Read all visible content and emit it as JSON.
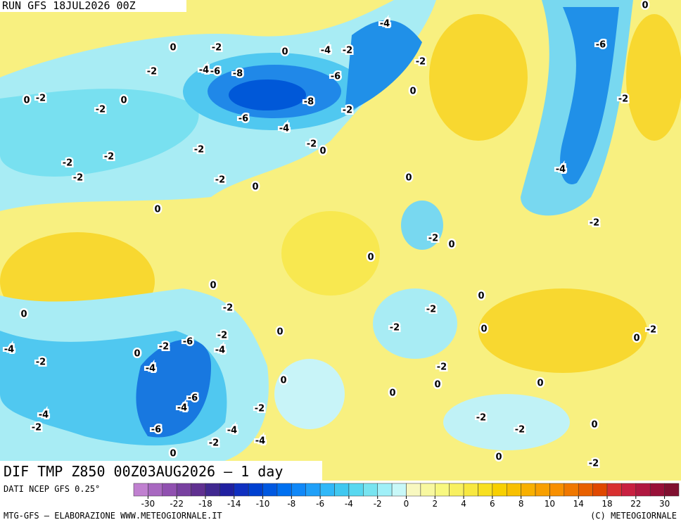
{
  "header": "RUN GFS 18JUL2026 00Z",
  "title": "DIF TMP Z850 00Z03AUG2026 – 1 day",
  "source": "DATI NCEP GFS 0.25°",
  "footer_left": "MTG-GFS – ELABORAZIONE WWW.METEOGIORNALE.IT",
  "footer_right": "(C) METEOGIORNALE",
  "colorbar": {
    "ticks": [
      -30,
      -22,
      -18,
      -14,
      -10,
      -8,
      -6,
      -4,
      -2,
      0,
      2,
      4,
      6,
      8,
      10,
      14,
      18,
      22,
      30
    ],
    "colors": [
      "#c080d0",
      "#a868c0",
      "#9050b0",
      "#7840a0",
      "#603090",
      "#402890",
      "#2020a0",
      "#1030c0",
      "#0040d0",
      "#0058e0",
      "#0070f0",
      "#1088f8",
      "#20a0f8",
      "#30b8f8",
      "#40c8f0",
      "#58d8f0",
      "#78e4f0",
      "#a0f0f8",
      "#c8f8f8",
      "#f8f8c0",
      "#f8f8a0",
      "#f8f880",
      "#f8f060",
      "#f8e840",
      "#f8e020",
      "#f8d000",
      "#f8c000",
      "#f8b000",
      "#f8a000",
      "#f89000",
      "#f07800",
      "#e86000",
      "#e04800",
      "#d83030",
      "#c82040",
      "#b01840",
      "#981038",
      "#801030"
    ]
  },
  "contour_labels": [
    0,
    -4,
    -6,
    0,
    -2,
    0,
    -4,
    -2,
    -2,
    -2,
    -4,
    -6,
    -8,
    -6,
    0,
    0,
    -2,
    0,
    -2,
    -8,
    -2,
    -2,
    -6,
    -4,
    -2,
    -2,
    -2,
    0,
    -2,
    -2,
    -4,
    -2,
    0,
    0,
    0,
    -2,
    -2,
    0,
    0,
    0,
    -2,
    0,
    0,
    -2,
    -2,
    0,
    0,
    -2,
    0,
    -2,
    -6,
    -2,
    -4,
    -4,
    0,
    -2,
    -4,
    -2,
    0,
    0,
    0,
    0,
    -6,
    -4,
    -2,
    -4,
    -2,
    -2,
    -6,
    -4,
    0,
    -2,
    -2,
    -4,
    0,
    0,
    -2
  ]
}
